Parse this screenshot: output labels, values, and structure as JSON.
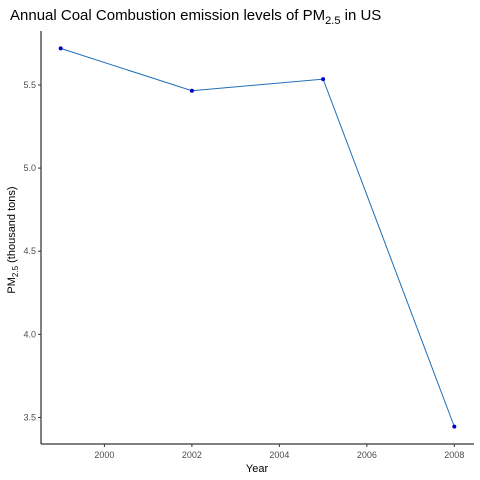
{
  "chart_data": {
    "type": "line",
    "title": "Annual Coal Combustion emission levels of PM",
    "title_subscript": "2.5",
    "title_suffix": " in US",
    "xlabel": "Year",
    "ylabel_prefix": "PM",
    "ylabel_subscript": "2.5",
    "ylabel_suffix": " (thousand tons)",
    "x": [
      1999,
      2002,
      2005,
      2008
    ],
    "series": [
      {
        "values": [
          5.72,
          5.465,
          5.535,
          3.445
        ]
      }
    ],
    "x_ticks": [
      2000,
      2002,
      2004,
      2006,
      2008
    ],
    "x_tick_labels": [
      "2000",
      "2002",
      "2004",
      "2006",
      "2008"
    ],
    "y_ticks": [
      3.5,
      4.0,
      4.5,
      5.0,
      5.5
    ],
    "y_tick_labels": [
      "3.5",
      "4.0",
      "4.5",
      "5.0",
      "5.5"
    ],
    "xlim": [
      1998.55,
      2008.45
    ],
    "ylim": [
      3.3405,
      5.8245
    ],
    "grid": false,
    "line_color": "#1f6fb5",
    "point_color": "#0000cc"
  }
}
